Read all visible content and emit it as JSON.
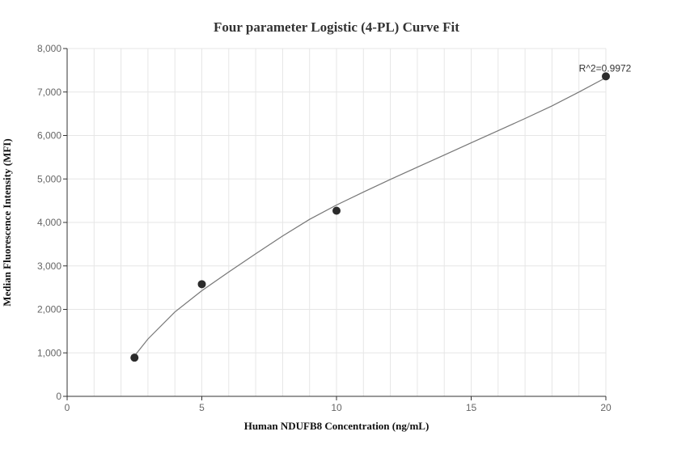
{
  "chart_data": {
    "type": "scatter",
    "title": "Four parameter Logistic (4-PL) Curve Fit",
    "xlabel": "Human NDUFB8 Concentration (ng/mL)",
    "ylabel": "Median Fluorescence Intensity (MFI)",
    "xlim": [
      0,
      20
    ],
    "ylim": [
      0,
      8000
    ],
    "x_ticks": [
      0,
      5,
      10,
      15,
      20
    ],
    "y_ticks": [
      0,
      1000,
      2000,
      3000,
      4000,
      5000,
      6000,
      7000,
      8000
    ],
    "x_tick_labels": [
      "0",
      "5",
      "10",
      "15",
      "20"
    ],
    "y_tick_labels": [
      "0",
      "1,000",
      "2,000",
      "3,000",
      "4,000",
      "5,000",
      "6,000",
      "7,000",
      "8,000"
    ],
    "grid": true,
    "points": {
      "x": [
        2.5,
        5,
        10,
        20
      ],
      "y": [
        890,
        2580,
        4270,
        7360
      ]
    },
    "fit_curve": {
      "x": [
        2.5,
        3.0,
        4.0,
        5.0,
        6.0,
        7.0,
        8.0,
        9.0,
        10.0,
        11.0,
        12.0,
        13.0,
        14.0,
        15.0,
        16.0,
        17.0,
        18.0,
        19.0,
        20.0
      ],
      "y": [
        930,
        1320,
        1940,
        2430,
        2860,
        3280,
        3690,
        4070,
        4400,
        4700,
        4990,
        5270,
        5550,
        5830,
        6110,
        6390,
        6680,
        7000,
        7330
      ]
    },
    "annotation": "R^2=0.9972",
    "colors": {
      "point": "#2b2b2b",
      "curve": "#777777",
      "grid": "#e6e6e6",
      "axis": "#333333"
    }
  }
}
